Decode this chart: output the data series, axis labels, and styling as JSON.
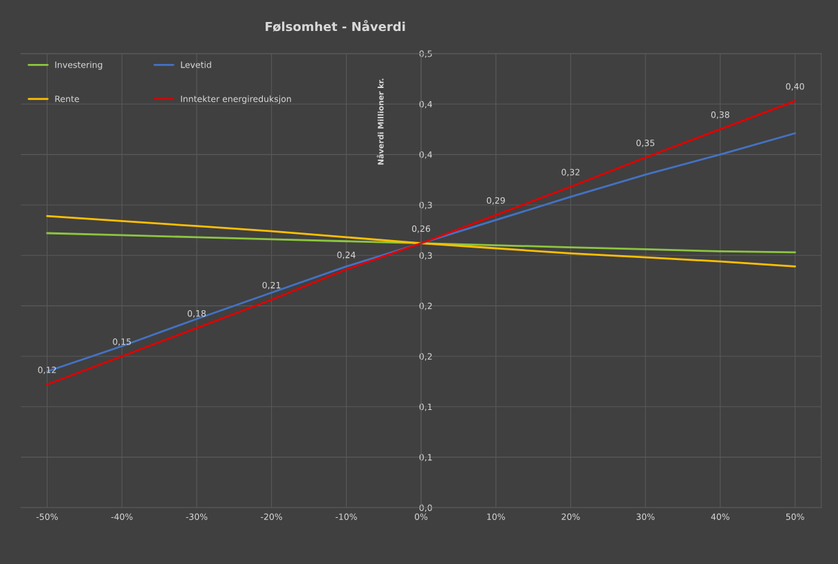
{
  "chart_data": {
    "type": "line",
    "title": "Følsomhet - Nåverdi",
    "ylabel": "Nåverdi Millioner kr.",
    "x": [
      -0.5,
      -0.4,
      -0.3,
      -0.2,
      -0.1,
      0.0,
      0.1,
      0.2,
      0.3,
      0.4,
      0.5
    ],
    "series": [
      {
        "name": "Investering",
        "color": "#8dc63f",
        "values": [
          0.272,
          0.27,
          0.268,
          0.266,
          0.264,
          0.262,
          0.26,
          0.258,
          0.256,
          0.254,
          0.253
        ]
      },
      {
        "name": "Levetid",
        "color": "#4472c4",
        "values": [
          0.135,
          0.16,
          0.187,
          0.213,
          0.239,
          0.262,
          0.285,
          0.308,
          0.33,
          0.35,
          0.371
        ]
      },
      {
        "name": "Rente",
        "color": "#ffc000",
        "values": [
          0.289,
          0.284,
          0.279,
          0.274,
          0.268,
          0.262,
          0.257,
          0.252,
          0.248,
          0.244,
          0.239
        ]
      },
      {
        "name": "Inntekter energireduksjon",
        "color": "#e00000",
        "values": [
          0.122,
          0.15,
          0.178,
          0.206,
          0.236,
          0.262,
          0.29,
          0.318,
          0.347,
          0.375,
          0.403
        ],
        "value_labels": [
          "0,12",
          "0,15",
          "0,18",
          "0,21",
          "0,24",
          "0,26",
          "0,29",
          "0,32",
          "0,35",
          "0,38",
          "0,40"
        ]
      }
    ],
    "xlim": [
      -0.535,
      0.535
    ],
    "xticks": [
      {
        "value": -0.5,
        "label": "-50%"
      },
      {
        "value": -0.4,
        "label": "-40%"
      },
      {
        "value": -0.3,
        "label": "-30%"
      },
      {
        "value": -0.2,
        "label": "-20%"
      },
      {
        "value": -0.1,
        "label": "-10%"
      },
      {
        "value": 0.0,
        "label": "0%"
      },
      {
        "value": 0.1,
        "label": "10%"
      },
      {
        "value": 0.2,
        "label": "20%"
      },
      {
        "value": 0.3,
        "label": "30%"
      },
      {
        "value": 0.4,
        "label": "40%"
      },
      {
        "value": 0.5,
        "label": "50%"
      }
    ],
    "ylim": [
      0,
      0.45
    ],
    "yticks": [
      {
        "value": 0,
        "label": "0,0"
      },
      {
        "value": 0.05,
        "label": "0,1"
      },
      {
        "value": 0.1,
        "label": "0,1"
      },
      {
        "value": 0.15,
        "label": "0,2"
      },
      {
        "value": 0.2,
        "label": "0,2"
      },
      {
        "value": 0.25,
        "label": "0,3"
      },
      {
        "value": 0.3,
        "label": "0,3"
      },
      {
        "value": 0.35,
        "label": "0,4"
      },
      {
        "value": 0.4,
        "label": "0,4"
      },
      {
        "value": 0.45,
        "label": "0,5"
      }
    ],
    "grid": true,
    "legend": "top left",
    "marker": "none",
    "line_style": "solid"
  }
}
